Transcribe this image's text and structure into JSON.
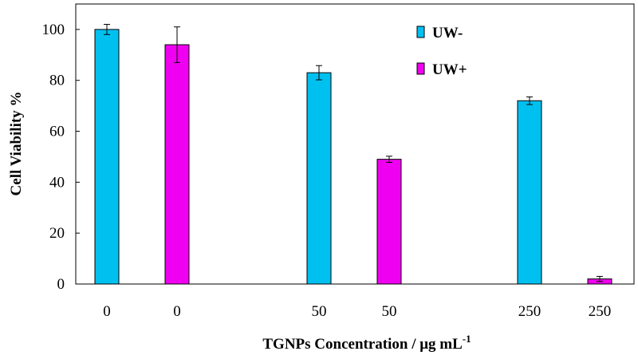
{
  "chart_data": {
    "type": "bar",
    "title": "",
    "xlabel": "TGNPs Concentration / μg mL",
    "xlabel_superscript": "-1",
    "ylabel": "Cell Viability %",
    "ylim": [
      0,
      110
    ],
    "yticks": [
      "0",
      "20",
      "40",
      "60",
      "80",
      "100"
    ],
    "grid": false,
    "legend_position": "top-right",
    "categories": [
      "0",
      "0",
      "50",
      "50",
      "250",
      "250"
    ],
    "series": [
      {
        "name": "UW-",
        "color": "#00C0F0"
      },
      {
        "name": "UW+",
        "color": "#F000F0"
      }
    ],
    "bars": [
      {
        "category": "0",
        "series": "UW-",
        "value": 100,
        "error": 2
      },
      {
        "category": "0",
        "series": "UW+",
        "value": 94,
        "error": 7
      },
      {
        "category": "50",
        "series": "UW-",
        "value": 83,
        "error": 2.8
      },
      {
        "category": "50",
        "series": "UW+",
        "value": 49,
        "error": 1.2
      },
      {
        "category": "250",
        "series": "UW-",
        "value": 72,
        "error": 1.5
      },
      {
        "category": "250",
        "series": "UW+",
        "value": 2,
        "error": 1
      }
    ]
  }
}
